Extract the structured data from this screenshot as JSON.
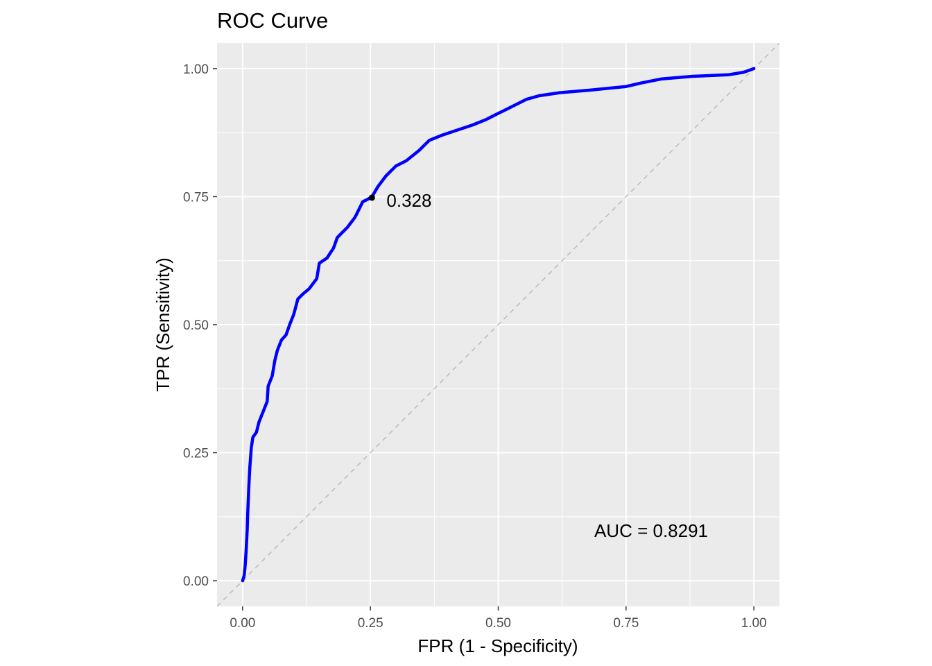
{
  "chart_data": {
    "type": "line",
    "title": "ROC Curve",
    "xlabel": "FPR (1 - Specificity)",
    "ylabel": "TPR (Sensitivity)",
    "xlim": [
      -0.05,
      1.05
    ],
    "ylim": [
      -0.05,
      1.05
    ],
    "x_ticks": [
      0.0,
      0.25,
      0.5,
      0.75,
      1.0
    ],
    "x_tick_labels": [
      "0.00",
      "0.25",
      "0.50",
      "0.75",
      "1.00"
    ],
    "y_ticks": [
      0.0,
      0.25,
      0.5,
      0.75,
      1.0
    ],
    "y_tick_labels": [
      "0.00",
      "0.25",
      "0.50",
      "0.75",
      "1.00"
    ],
    "grid": true,
    "panel_background": "#ebebeb",
    "series": [
      {
        "color": "#0000ff",
        "points": [
          [
            0.0,
            0.0
          ],
          [
            0.003,
            0.01
          ],
          [
            0.005,
            0.03
          ],
          [
            0.007,
            0.06
          ],
          [
            0.009,
            0.1
          ],
          [
            0.01,
            0.13
          ],
          [
            0.012,
            0.18
          ],
          [
            0.014,
            0.22
          ],
          [
            0.017,
            0.26
          ],
          [
            0.02,
            0.28
          ],
          [
            0.027,
            0.29
          ],
          [
            0.032,
            0.31
          ],
          [
            0.04,
            0.33
          ],
          [
            0.048,
            0.35
          ],
          [
            0.05,
            0.38
          ],
          [
            0.058,
            0.4
          ],
          [
            0.063,
            0.43
          ],
          [
            0.068,
            0.45
          ],
          [
            0.076,
            0.47
          ],
          [
            0.085,
            0.48
          ],
          [
            0.092,
            0.5
          ],
          [
            0.1,
            0.52
          ],
          [
            0.108,
            0.55
          ],
          [
            0.118,
            0.56
          ],
          [
            0.13,
            0.57
          ],
          [
            0.145,
            0.59
          ],
          [
            0.15,
            0.62
          ],
          [
            0.165,
            0.63
          ],
          [
            0.178,
            0.65
          ],
          [
            0.185,
            0.67
          ],
          [
            0.195,
            0.68
          ],
          [
            0.205,
            0.69
          ],
          [
            0.22,
            0.71
          ],
          [
            0.235,
            0.74
          ],
          [
            0.245,
            0.745
          ],
          [
            0.253,
            0.75
          ],
          [
            0.265,
            0.77
          ],
          [
            0.28,
            0.79
          ],
          [
            0.3,
            0.81
          ],
          [
            0.32,
            0.82
          ],
          [
            0.345,
            0.84
          ],
          [
            0.365,
            0.86
          ],
          [
            0.39,
            0.87
          ],
          [
            0.42,
            0.88
          ],
          [
            0.45,
            0.89
          ],
          [
            0.475,
            0.9
          ],
          [
            0.495,
            0.91
          ],
          [
            0.515,
            0.92
          ],
          [
            0.535,
            0.93
          ],
          [
            0.555,
            0.94
          ],
          [
            0.58,
            0.947
          ],
          [
            0.62,
            0.953
          ],
          [
            0.68,
            0.958
          ],
          [
            0.75,
            0.965
          ],
          [
            0.78,
            0.972
          ],
          [
            0.82,
            0.98
          ],
          [
            0.88,
            0.985
          ],
          [
            0.95,
            0.988
          ],
          [
            0.98,
            0.993
          ],
          [
            1.0,
            1.0
          ]
        ]
      }
    ],
    "reference_line": {
      "from": [
        0,
        0
      ],
      "to": [
        1,
        1
      ],
      "style": "dashed",
      "color": "#bebebe"
    },
    "highlight_point": {
      "x": 0.253,
      "y": 0.748,
      "label": "0.328",
      "color": "#000000"
    },
    "annotation": {
      "text": "AUC = 0.8291",
      "x": 0.8,
      "y": 0.1
    }
  }
}
